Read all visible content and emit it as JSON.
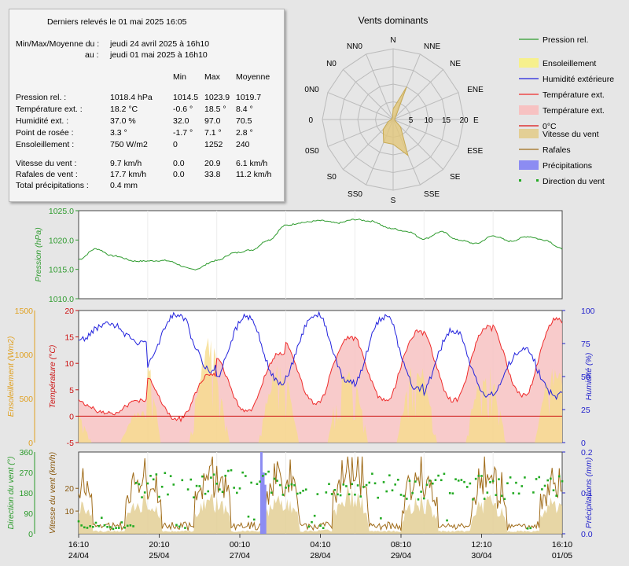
{
  "summary": {
    "title": "Derniers relevés le 01 mai 2025 16:05",
    "period_label_1": "Min/Max/Moyenne du :",
    "period_value_1": "jeudi 24 avril 2025 à 16h10",
    "period_label_2": "au :",
    "period_value_2": "jeudi 01 mai 2025 à 16h10",
    "col_min": "Min",
    "col_max": "Max",
    "col_avg": "Moyenne",
    "rows": [
      {
        "label": "Pression rel. :",
        "value": "1018.4 hPa",
        "min": "1014.5",
        "max": "1023.9",
        "avg": "1019.7"
      },
      {
        "label": "Température ext. :",
        "value": "18.2 °C",
        "min": "-0.6 °",
        "max": "18.5 °",
        "avg": "8.4 °"
      },
      {
        "label": "Humidité ext. :",
        "value": "37.0 %",
        "min": "32.0",
        "max": "97.0",
        "avg": "70.5"
      },
      {
        "label": "Point de rosée :",
        "value": "3.3 °",
        "min": "-1.7 °",
        "max": "7.1 °",
        "avg": "2.8 °"
      },
      {
        "label": "Ensoleillement :",
        "value": "750 W/m2",
        "min": "0",
        "max": "1252",
        "avg": "240"
      }
    ],
    "rows2": [
      {
        "label": "Vitesse du vent :",
        "value": "9.7 km/h",
        "min": "0.0",
        "max": "20.9",
        "avg": "6.1 km/h"
      },
      {
        "label": "Rafales de vent :",
        "value": "17.7 km/h",
        "min": "0.0",
        "max": "33.8",
        "avg": "11.2 km/h"
      },
      {
        "label": "Total précipitations :",
        "value": "0.4 mm",
        "min": "",
        "max": "",
        "avg": ""
      }
    ]
  },
  "legend": [
    {
      "label": "Pression rel.",
      "color": "#2e9b2e",
      "kind": "line"
    },
    {
      "label": "Ensoleillement",
      "color": "#f6f08c",
      "kind": "box"
    },
    {
      "label": "Humidité extérieure",
      "color": "#2222dd",
      "kind": "line"
    },
    {
      "label": "Température ext.",
      "color": "#ee2a2a",
      "kind": "line"
    },
    {
      "label": "Température ext.",
      "color": "#f7c2c2",
      "kind": "box"
    },
    {
      "label": "0°C",
      "color": "#dd1111",
      "kind": "line"
    },
    {
      "label": "Vitesse du vent",
      "color": "#e3cf95",
      "kind": "box"
    },
    {
      "label": "Rafales",
      "color": "#a06c1a",
      "kind": "line"
    },
    {
      "label": "Précipitations",
      "color": "#8c8cf2",
      "kind": "box"
    },
    {
      "label": "Direction du vent",
      "color": "#22aa22",
      "kind": "dots"
    }
  ],
  "chart_data": [
    {
      "type": "radar",
      "title": "Vents dominants",
      "directions": [
        "N",
        "NNE",
        "NE",
        "ENE",
        "E",
        "ESE",
        "SE",
        "SSE",
        "S",
        "SS0",
        "S0",
        "0S0",
        "0",
        "0N0",
        "N0",
        "NN0"
      ],
      "ticks": [
        5,
        10,
        15,
        20
      ],
      "rmax": 20,
      "values": [
        3,
        10,
        1,
        0.5,
        0.5,
        0.5,
        3,
        11,
        7,
        7,
        4,
        1.5,
        0.5,
        0.5,
        0.5,
        0.5
      ],
      "color": "#e2c77a"
    },
    {
      "type": "line",
      "ylabel": "Pression (hPa)",
      "ylim": [
        1010,
        1025
      ],
      "yticks": [
        "1010.0",
        "1015.0",
        "1020.0",
        "1025.0"
      ],
      "x_hours": [
        0,
        6,
        12,
        20,
        30,
        40,
        48,
        54,
        60,
        66,
        72,
        78,
        84,
        90,
        96,
        102,
        108,
        114,
        120,
        126,
        132,
        138,
        144,
        150,
        156,
        162,
        168
      ],
      "values": [
        1016.7,
        1018.5,
        1017.3,
        1016.4,
        1016.5,
        1015.0,
        1016.5,
        1017.8,
        1018.3,
        1020.0,
        1022.5,
        1023.0,
        1023.3,
        1022.9,
        1023.5,
        1023.2,
        1022.0,
        1021.5,
        1020.2,
        1021.4,
        1020.0,
        1019.4,
        1020.7,
        1019.8,
        1020.6,
        1020.0,
        1018.5
      ],
      "color": "#2e9b2e"
    },
    {
      "type": "area",
      "ylabel_left": "Ensoleillement  (Wm2)",
      "ylabel_temp": "Température (°C)",
      "ylabel_right": "Humidité (%)",
      "sun_ylim": [
        0,
        1500
      ],
      "sun_yticks": [
        "0",
        "500",
        "1000",
        "1500"
      ],
      "temp_ylim": [
        -5,
        20
      ],
      "temp_yticks": [
        "-5",
        "0",
        "5",
        "10",
        "15",
        "20"
      ],
      "hum_ylim": [
        0,
        100
      ],
      "hum_yticks": [
        "0",
        "25",
        "50",
        "75",
        "100"
      ],
      "days": [
        {
          "start": 0,
          "tmax": 3.0,
          "tmin": 0.5,
          "hmax": 90,
          "hmin": 75,
          "sun": 400
        },
        {
          "start": 24,
          "tmax": 8.0,
          "tmin": -0.6,
          "hmax": 97,
          "hmin": 55,
          "sun": 1250
        },
        {
          "start": 48,
          "tmax": 12.0,
          "tmin": 1.0,
          "hmax": 95,
          "hmin": 45,
          "sun": 900
        },
        {
          "start": 72,
          "tmax": 15.0,
          "tmin": 2.5,
          "hmax": 97,
          "hmin": 45,
          "sun": 950
        },
        {
          "start": 96,
          "tmax": 16.0,
          "tmin": 3.0,
          "hmax": 95,
          "hmin": 40,
          "sun": 950
        },
        {
          "start": 120,
          "tmax": 17.0,
          "tmin": 3.0,
          "hmax": 85,
          "hmin": 35,
          "sun": 950
        },
        {
          "start": 144,
          "tmax": 18.5,
          "tmin": 4.0,
          "hmax": 70,
          "hmin": 35,
          "sun": 900
        }
      ],
      "zero_line": 0
    },
    {
      "type": "scatter",
      "ylabel_dir": "Direction du vent (°)",
      "ylabel_speed": "Vitesse du vent (km/h)",
      "ylabel_rain": "Précipitations (mm)",
      "dir_ylim": [
        0,
        360
      ],
      "dir_yticks": [
        "0",
        "90",
        "180",
        "270",
        "360"
      ],
      "speed_ylim": [
        0,
        36
      ],
      "speed_yticks": [
        "10",
        "20"
      ],
      "rain_ylim": [
        0,
        0.2
      ],
      "rain_yticks": [
        "0.0",
        "0.1",
        "0.2"
      ],
      "rain_events": [
        {
          "x": 63.5,
          "mm": 0.2
        },
        {
          "x": 64.2,
          "mm": 0.15
        },
        {
          "x": 64.8,
          "mm": 0.12
        }
      ]
    }
  ],
  "x_axis": {
    "ticks": [
      {
        "time": "16:10",
        "date": "24/04"
      },
      {
        "time": "20:10",
        "date": "25/04"
      },
      {
        "time": "00:10",
        "date": "27/04"
      },
      {
        "time": "04:10",
        "date": "28/04"
      },
      {
        "time": "08:10",
        "date": "29/04"
      },
      {
        "time": "12:10",
        "date": "30/04"
      },
      {
        "time": "16:10",
        "date": "01/05"
      }
    ]
  }
}
